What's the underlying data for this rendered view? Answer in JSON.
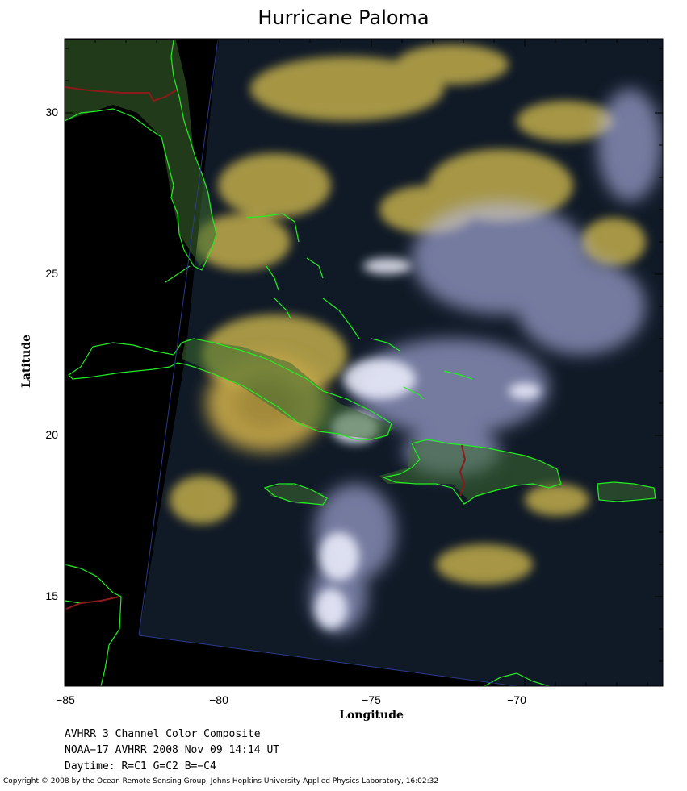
{
  "title": "Hurricane Paloma",
  "axes": {
    "xlabel": "Longitude",
    "ylabel": "Latitude",
    "xlim": [
      -85,
      -65.5
    ],
    "ylim": [
      12.2,
      32.2
    ],
    "xticks": [
      "−85",
      "−80",
      "−75",
      "−70"
    ],
    "yticks": [
      "30",
      "25",
      "20",
      "15"
    ]
  },
  "info": {
    "line1": "AVHRR 3 Channel Color Composite",
    "line2": "NOAA−17 AVHRR 2008 Nov 09 14:14 UT",
    "line3": "Daytime: R=C1 G=C2 B=−C4"
  },
  "copyright": "Copyright © 2008 by the Ocean Remote Sensing Group, Johns Hopkins University Applied Physics Laboratory, 16:02:32",
  "colors": {
    "coastline": "#22ee22",
    "border": "#8b1a1a",
    "ocean": "#0f1a26",
    "background": "#000000",
    "cloud_white": "#e8eaff",
    "cloud_yellow": "#e8d060",
    "cloud_blue": "#8a8fe0"
  }
}
